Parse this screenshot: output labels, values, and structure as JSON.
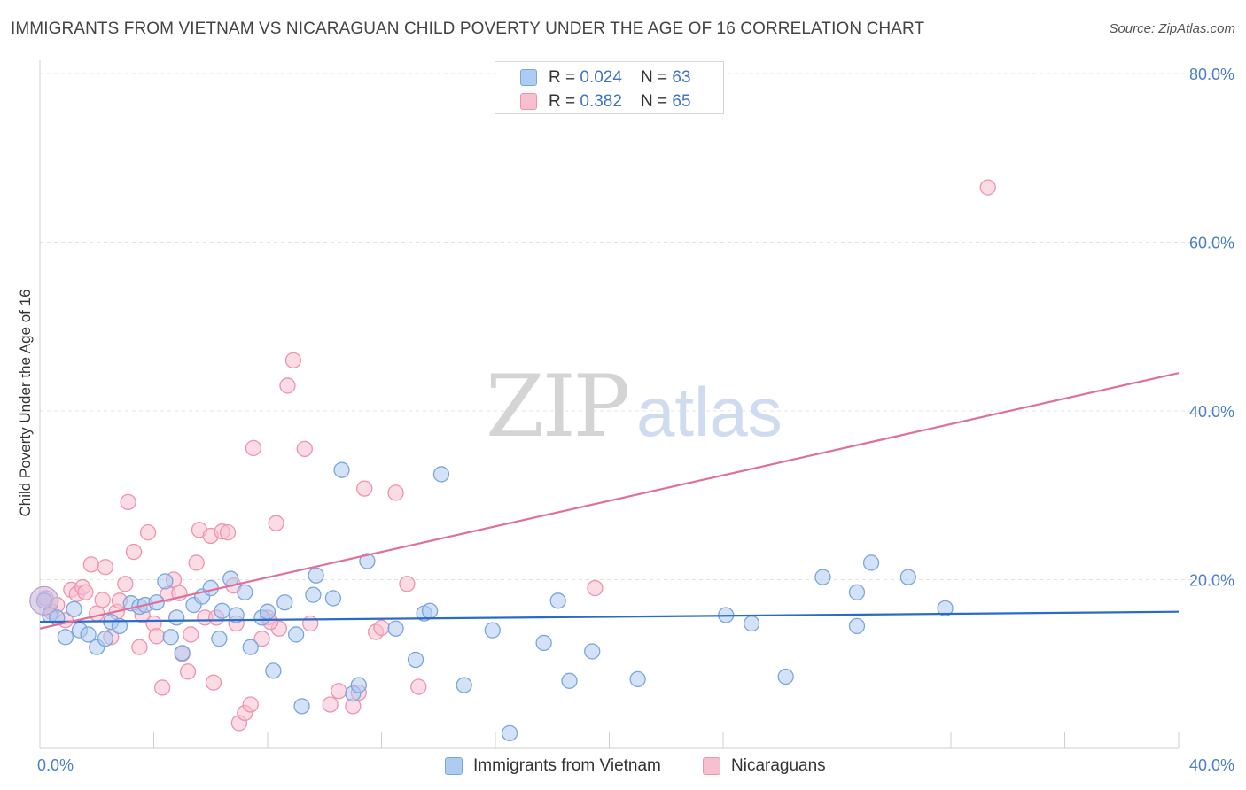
{
  "title": "IMMIGRANTS FROM VIETNAM VS NICARAGUAN CHILD POVERTY UNDER THE AGE OF 16 CORRELATION CHART",
  "source": "Source: ZipAtlas.com",
  "watermark": {
    "zip": "ZIP",
    "atlas": "atlas"
  },
  "legend_top": [
    {
      "r_label": "R = ",
      "r_value": "0.024",
      "n_label": "N = ",
      "n_value": "63"
    },
    {
      "r_label": "R = ",
      "r_value": "0.382",
      "n_label": "N = ",
      "n_value": "65"
    }
  ],
  "colors": {
    "blue_fill": "#aecbf0",
    "blue_stroke": "#7aa5df",
    "blue_line": "#2a6bc9",
    "pink_fill": "#f7bfd0",
    "pink_stroke": "#ee93ae",
    "pink_line": "#e0709a",
    "tick_text": "#4a7fc8",
    "grid": "#e3e3e3"
  },
  "chart_data": {
    "type": "scatter",
    "xlabel": "",
    "ylabel": "Child Poverty Under the Age of 16",
    "xlim": [
      0,
      40
    ],
    "ylim": [
      0,
      80
    ],
    "x_tick_labels": [
      "0.0%",
      "40.0%"
    ],
    "y_ticks": [
      20,
      40,
      60,
      80
    ],
    "y_tick_labels": [
      "20.0%",
      "40.0%",
      "60.0%",
      "80.0%"
    ],
    "legend": [
      "Immigrants from Vietnam",
      "Nicaraguans"
    ],
    "series": [
      {
        "name": "Immigrants from Vietnam",
        "color": "#aecbf0",
        "trend": {
          "x": [
            0,
            40
          ],
          "y": [
            15.0,
            16.2
          ]
        },
        "points": [
          [
            0.15,
            17.5
          ],
          [
            0.35,
            15.8
          ],
          [
            0.6,
            15.5
          ],
          [
            0.9,
            13.2
          ],
          [
            1.2,
            16.5
          ],
          [
            1.4,
            14.0
          ],
          [
            1.7,
            13.5
          ],
          [
            2.0,
            12.0
          ],
          [
            2.3,
            13.0
          ],
          [
            2.5,
            15.0
          ],
          [
            2.8,
            14.5
          ],
          [
            3.2,
            17.2
          ],
          [
            3.5,
            16.8
          ],
          [
            3.7,
            17.0
          ],
          [
            4.1,
            17.3
          ],
          [
            4.4,
            19.8
          ],
          [
            4.6,
            13.2
          ],
          [
            4.8,
            15.5
          ],
          [
            5.0,
            11.3
          ],
          [
            5.4,
            17.0
          ],
          [
            5.7,
            18.0
          ],
          [
            6.0,
            19.0
          ],
          [
            6.3,
            13.0
          ],
          [
            6.4,
            16.3
          ],
          [
            6.7,
            20.1
          ],
          [
            6.9,
            15.8
          ],
          [
            7.2,
            18.5
          ],
          [
            7.4,
            12.0
          ],
          [
            7.8,
            15.5
          ],
          [
            8.0,
            16.2
          ],
          [
            8.2,
            9.2
          ],
          [
            8.6,
            17.3
          ],
          [
            9.0,
            13.5
          ],
          [
            9.2,
            5.0
          ],
          [
            9.6,
            18.2
          ],
          [
            9.7,
            20.5
          ],
          [
            10.3,
            17.8
          ],
          [
            10.6,
            33.0
          ],
          [
            11.0,
            6.5
          ],
          [
            11.2,
            7.5
          ],
          [
            11.5,
            22.2
          ],
          [
            12.5,
            14.2
          ],
          [
            13.2,
            10.5
          ],
          [
            13.5,
            16.0
          ],
          [
            13.7,
            16.3
          ],
          [
            14.1,
            32.5
          ],
          [
            14.9,
            7.5
          ],
          [
            15.9,
            14.0
          ],
          [
            16.5,
            1.8
          ],
          [
            17.7,
            12.5
          ],
          [
            18.2,
            17.5
          ],
          [
            18.6,
            8.0
          ],
          [
            19.4,
            11.5
          ],
          [
            21.0,
            8.2
          ],
          [
            24.1,
            15.8
          ],
          [
            25.0,
            14.8
          ],
          [
            26.2,
            8.5
          ],
          [
            27.5,
            20.3
          ],
          [
            28.7,
            18.5
          ],
          [
            28.7,
            14.5
          ],
          [
            29.2,
            22.0
          ],
          [
            30.5,
            20.3
          ],
          [
            31.8,
            16.6
          ]
        ]
      },
      {
        "name": "Nicaraguans",
        "color": "#f7bfd0",
        "trend": {
          "x": [
            0,
            40
          ],
          "y": [
            14.2,
            44.5
          ]
        },
        "points": [
          [
            0.2,
            17.8
          ],
          [
            0.4,
            16.2
          ],
          [
            0.6,
            17.0
          ],
          [
            0.9,
            15.2
          ],
          [
            1.1,
            18.8
          ],
          [
            1.3,
            18.3
          ],
          [
            1.5,
            19.1
          ],
          [
            1.6,
            18.5
          ],
          [
            1.8,
            21.8
          ],
          [
            2.0,
            16.0
          ],
          [
            2.2,
            17.6
          ],
          [
            2.3,
            21.5
          ],
          [
            2.5,
            13.2
          ],
          [
            2.7,
            16.2
          ],
          [
            2.8,
            17.5
          ],
          [
            3.0,
            19.5
          ],
          [
            3.1,
            29.2
          ],
          [
            3.3,
            23.3
          ],
          [
            3.5,
            12.0
          ],
          [
            3.6,
            15.8
          ],
          [
            3.8,
            25.6
          ],
          [
            4.0,
            14.8
          ],
          [
            4.1,
            13.3
          ],
          [
            4.3,
            7.2
          ],
          [
            4.5,
            18.3
          ],
          [
            4.7,
            20.0
          ],
          [
            4.9,
            18.4
          ],
          [
            5.0,
            11.2
          ],
          [
            5.2,
            9.1
          ],
          [
            5.3,
            13.5
          ],
          [
            5.5,
            22.0
          ],
          [
            5.6,
            25.9
          ],
          [
            5.8,
            15.5
          ],
          [
            6.0,
            25.2
          ],
          [
            6.1,
            7.8
          ],
          [
            6.2,
            15.5
          ],
          [
            6.4,
            25.7
          ],
          [
            6.6,
            25.6
          ],
          [
            6.8,
            19.3
          ],
          [
            6.9,
            14.8
          ],
          [
            7.0,
            3.0
          ],
          [
            7.2,
            4.2
          ],
          [
            7.4,
            5.2
          ],
          [
            7.5,
            35.6
          ],
          [
            7.8,
            13.0
          ],
          [
            8.0,
            15.5
          ],
          [
            8.3,
            26.7
          ],
          [
            8.4,
            14.2
          ],
          [
            8.7,
            43.0
          ],
          [
            8.9,
            46.0
          ],
          [
            9.3,
            35.5
          ],
          [
            9.5,
            14.8
          ],
          [
            10.2,
            5.2
          ],
          [
            10.5,
            6.8
          ],
          [
            11.0,
            5.0
          ],
          [
            11.2,
            6.6
          ],
          [
            11.4,
            30.8
          ],
          [
            11.8,
            13.8
          ],
          [
            12.0,
            14.3
          ],
          [
            12.5,
            30.3
          ],
          [
            12.9,
            19.5
          ],
          [
            13.3,
            7.3
          ],
          [
            19.5,
            19.0
          ],
          [
            33.3,
            66.5
          ],
          [
            8.1,
            15.0
          ]
        ]
      }
    ]
  }
}
